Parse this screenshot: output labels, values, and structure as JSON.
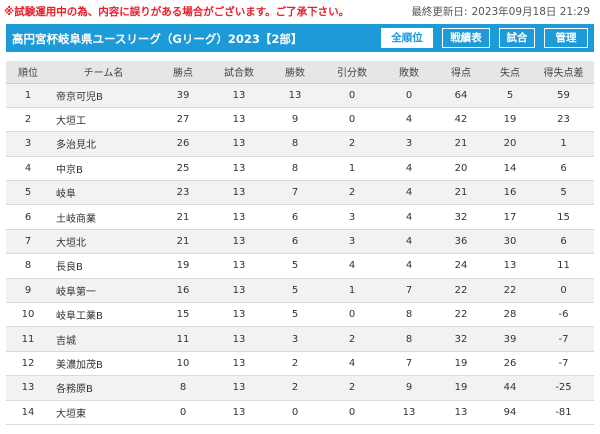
{
  "notice": "※試験運用中の為、内容に誤りがある場合がございます。ご了承下さい。",
  "last_updated": {
    "label": "最終更新日:",
    "value": "2023年09月18日 21:29"
  },
  "header": {
    "title": "高円宮杯岐阜県ユースリーグ（Gリーグ）2023【2部】",
    "buttons": [
      {
        "label": "全順位",
        "active": true
      },
      {
        "label": "戦績表",
        "active": false
      },
      {
        "label": "試合",
        "active": false
      },
      {
        "label": "管理",
        "active": false
      }
    ]
  },
  "colors": {
    "accent": "#1d9ad8",
    "notice": "#e8202a",
    "header_row": "#e6e6e6",
    "row_stripe": "#f2f2f2"
  },
  "table": {
    "columns": [
      "順位",
      "チーム名",
      "勝点",
      "試合数",
      "勝数",
      "引分数",
      "敗数",
      "得点",
      "失点",
      "得失点差"
    ],
    "rows": [
      [
        "1",
        "帝京可児B",
        "39",
        "13",
        "13",
        "0",
        "0",
        "64",
        "5",
        "59"
      ],
      [
        "2",
        "大垣工",
        "27",
        "13",
        "9",
        "0",
        "4",
        "42",
        "19",
        "23"
      ],
      [
        "3",
        "多治見北",
        "26",
        "13",
        "8",
        "2",
        "3",
        "21",
        "20",
        "1"
      ],
      [
        "4",
        "中京B",
        "25",
        "13",
        "8",
        "1",
        "4",
        "20",
        "14",
        "6"
      ],
      [
        "5",
        "岐阜",
        "23",
        "13",
        "7",
        "2",
        "4",
        "21",
        "16",
        "5"
      ],
      [
        "6",
        "土岐商業",
        "21",
        "13",
        "6",
        "3",
        "4",
        "32",
        "17",
        "15"
      ],
      [
        "7",
        "大垣北",
        "21",
        "13",
        "6",
        "3",
        "4",
        "36",
        "30",
        "6"
      ],
      [
        "8",
        "長良B",
        "19",
        "13",
        "5",
        "4",
        "4",
        "24",
        "13",
        "11"
      ],
      [
        "9",
        "岐阜第一",
        "16",
        "13",
        "5",
        "1",
        "7",
        "22",
        "22",
        "0"
      ],
      [
        "10",
        "岐阜工業B",
        "15",
        "13",
        "5",
        "0",
        "8",
        "22",
        "28",
        "-6"
      ],
      [
        "11",
        "吉城",
        "11",
        "13",
        "3",
        "2",
        "8",
        "32",
        "39",
        "-7"
      ],
      [
        "12",
        "美濃加茂B",
        "10",
        "13",
        "2",
        "4",
        "7",
        "19",
        "26",
        "-7"
      ],
      [
        "13",
        "各務原B",
        "8",
        "13",
        "2",
        "2",
        "9",
        "19",
        "44",
        "-25"
      ],
      [
        "14",
        "大垣東",
        "0",
        "13",
        "0",
        "0",
        "13",
        "13",
        "94",
        "-81"
      ]
    ]
  }
}
